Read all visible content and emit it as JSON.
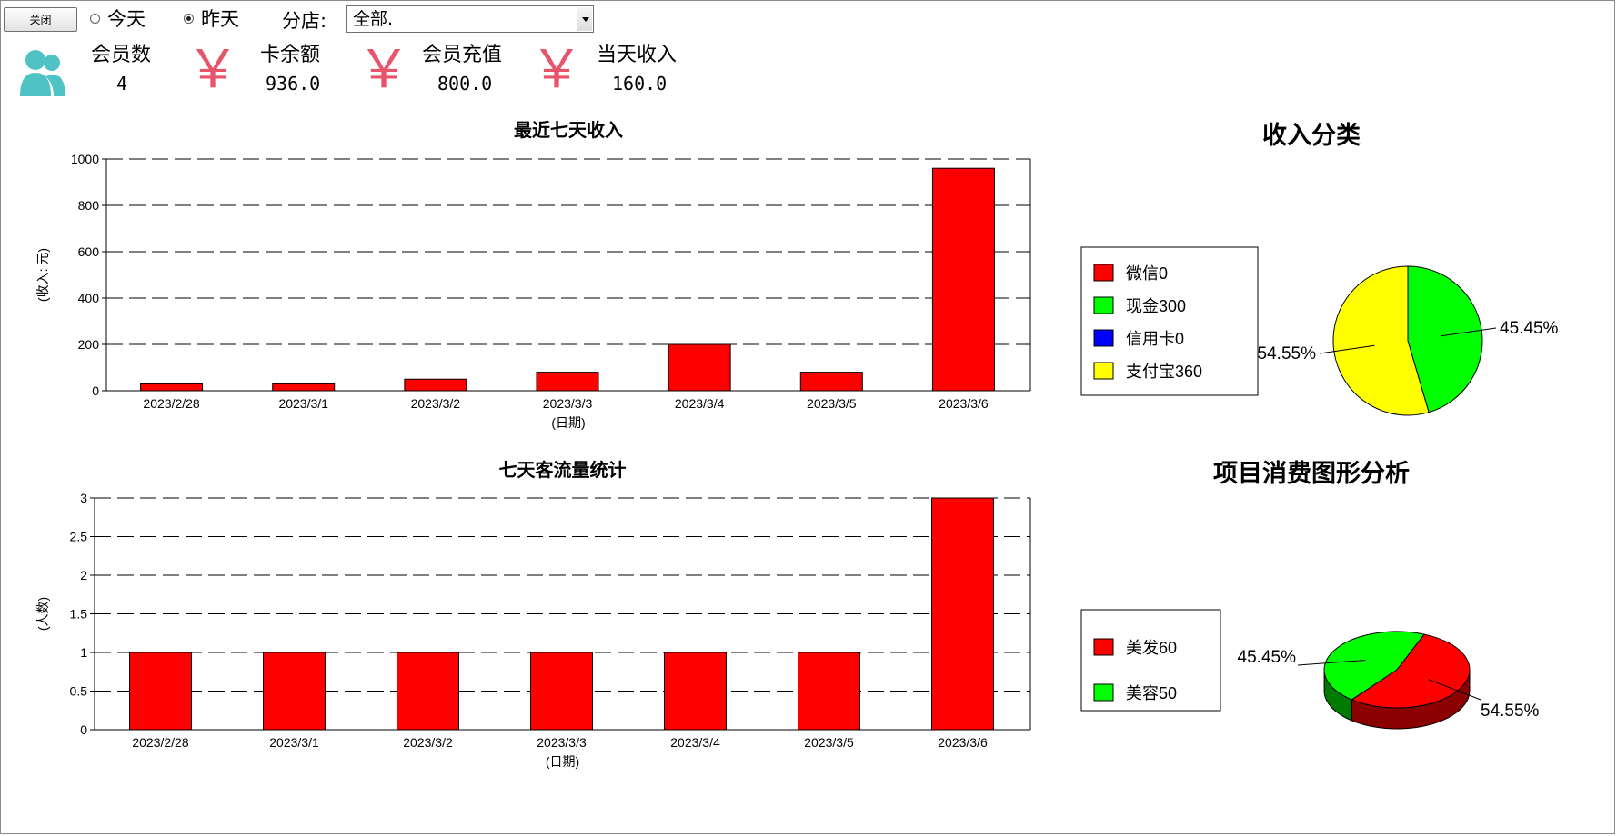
{
  "toolbar": {
    "close_label": "关闭",
    "radio_today": "今天",
    "radio_yesterday": "昨天",
    "branch_label": "分店:",
    "branch_value": "全部."
  },
  "stats": [
    {
      "label": "会员数",
      "value": "4"
    },
    {
      "label": "卡余额",
      "value": "936.0"
    },
    {
      "label": "会员充值",
      "value": "800.0"
    },
    {
      "label": "当天收入",
      "value": "160.0"
    }
  ],
  "yen_symbol": "￥",
  "colors": {
    "accent_icon": "#4fc3c3",
    "yen": "#e8556b",
    "bar": "#ff0000"
  },
  "chart_data": [
    {
      "type": "bar",
      "title": "最近七天收入",
      "xlabel": "(日期)",
      "ylabel": "(收入: 元)",
      "categories": [
        "2023/2/28",
        "2023/3/1",
        "2023/3/2",
        "2023/3/3",
        "2023/3/4",
        "2023/3/5",
        "2023/3/6"
      ],
      "values": [
        30,
        30,
        50,
        80,
        200,
        80,
        960
      ],
      "ylim": [
        0,
        1000
      ],
      "yticks": [
        "0",
        "200",
        "400",
        "600",
        "800",
        "1000"
      ],
      "grid": true
    },
    {
      "type": "bar",
      "title": "七天客流量统计",
      "xlabel": "(日期)",
      "ylabel": "(人数)",
      "categories": [
        "2023/2/28",
        "2023/3/1",
        "2023/3/2",
        "2023/3/3",
        "2023/3/4",
        "2023/3/5",
        "2023/3/6"
      ],
      "values": [
        1,
        1,
        1,
        1,
        1,
        1,
        3
      ],
      "ylim": [
        0,
        3
      ],
      "yticks": [
        "0",
        "0.5",
        "1",
        "1.5",
        "2",
        "2.5",
        "3"
      ],
      "grid": true
    },
    {
      "type": "pie",
      "title": "收入分类",
      "legend": [
        {
          "label": "微信0",
          "color": "#ff0000"
        },
        {
          "label": "现金300",
          "color": "#00ff00"
        },
        {
          "label": "信用卡0",
          "color": "#0000ff"
        },
        {
          "label": "支付宝360",
          "color": "#ffff00"
        }
      ],
      "slices": [
        {
          "name": "现金",
          "value": 300,
          "percent": "45.45%",
          "color": "#00ff00"
        },
        {
          "name": "支付宝",
          "value": 360,
          "percent": "54.55%",
          "color": "#ffff00"
        }
      ]
    },
    {
      "type": "pie",
      "title": "项目消费图形分析",
      "legend": [
        {
          "label": "美发60",
          "color": "#ff0000"
        },
        {
          "label": "美容50",
          "color": "#00ff00"
        }
      ],
      "slices": [
        {
          "name": "美发",
          "value": 60,
          "percent": "54.55%",
          "color": "#ff0000"
        },
        {
          "name": "美容",
          "value": 50,
          "percent": "45.45%",
          "color": "#00ff00"
        }
      ]
    }
  ]
}
